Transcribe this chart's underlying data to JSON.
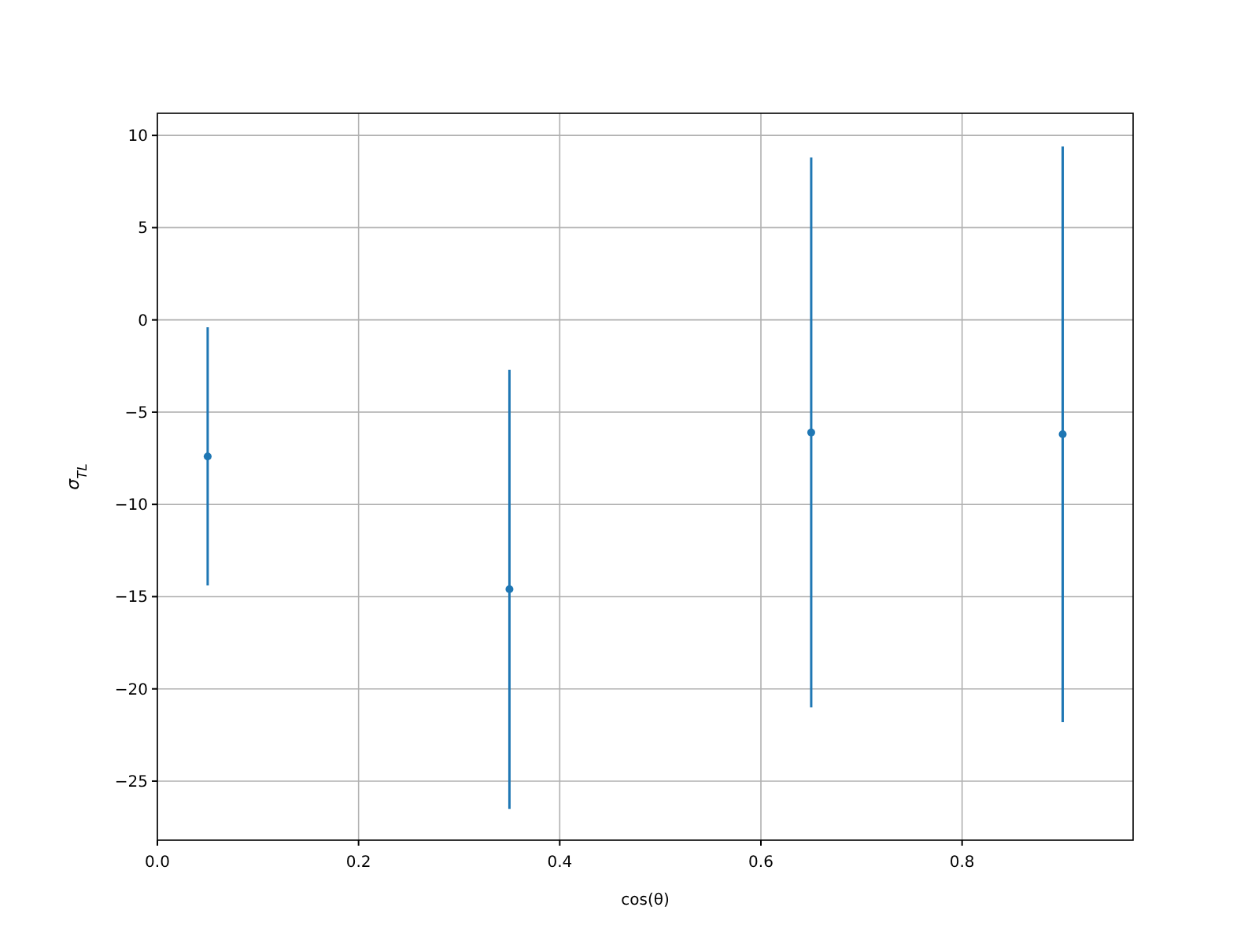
{
  "chart_data": {
    "type": "scatter",
    "xlabel": "cos(θ)",
    "ylabel": "σ$_{TL}$",
    "x": [
      0.05,
      0.35,
      0.65,
      0.9
    ],
    "series": [
      {
        "color": "#1f77b4",
        "values": [
          -7.4,
          -14.6,
          -6.1,
          -6.2
        ],
        "errors": [
          7,
          11.9,
          14.9,
          15.6
        ]
      }
    ],
    "xlim": [
      0,
      0.97
    ],
    "xticks": [
      {
        "value": 0,
        "label": "0.0"
      },
      {
        "value": 0.2,
        "label": "0.2"
      },
      {
        "value": 0.4,
        "label": "0.4"
      },
      {
        "value": 0.6,
        "label": "0.6"
      },
      {
        "value": 0.8,
        "label": "0.8"
      }
    ],
    "ylim": [
      -28.2,
      11.2
    ],
    "yticks": [
      -25,
      -20,
      -15,
      -10,
      -5,
      0,
      5,
      10
    ],
    "grid": true,
    "marker": "circle"
  }
}
